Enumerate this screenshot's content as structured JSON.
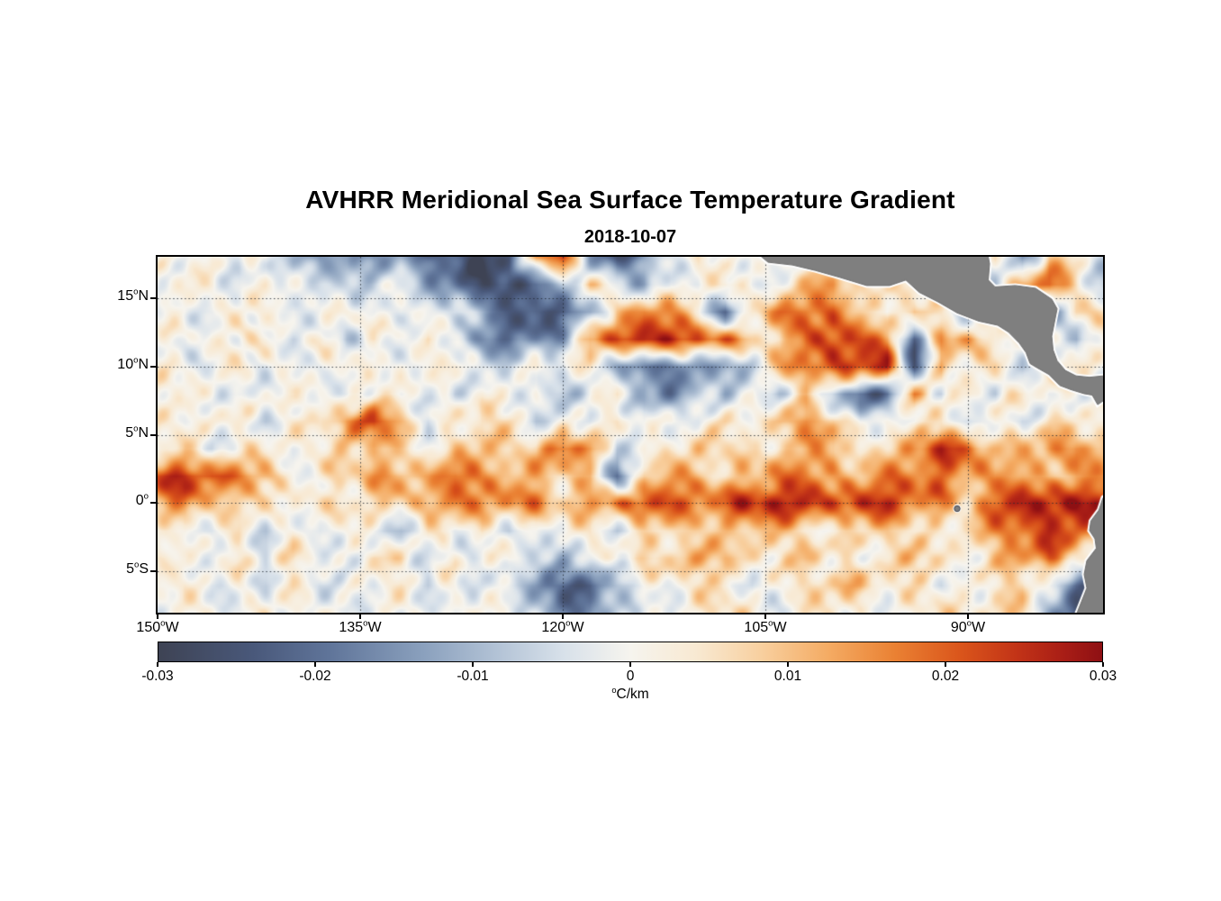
{
  "figure": {
    "title": "AVHRR Meridional Sea Surface Temperature Gradient",
    "subtitle": "2018-10-07"
  },
  "chart_data": {
    "type": "heatmap",
    "title": "AVHRR Meridional Sea Surface Temperature Gradient",
    "date": "2018-10-07",
    "units": "degC/km",
    "field_value_scale": 0.01,
    "lon_range_deg_west": [
      150,
      80
    ],
    "lat_range_deg_north": [
      18,
      -8
    ],
    "deg_sup": "o",
    "x_axis": {
      "ticks": [
        {
          "value": 150,
          "label": "150",
          "suffix": "W"
        },
        {
          "value": 135,
          "label": "135",
          "suffix": "W"
        },
        {
          "value": 120,
          "label": "120",
          "suffix": "W"
        },
        {
          "value": 105,
          "label": "105",
          "suffix": "W"
        },
        {
          "value": 90,
          "label": "90",
          "suffix": "W"
        }
      ]
    },
    "y_axis": {
      "ticks": [
        {
          "value": 15,
          "label": "15",
          "suffix": "N"
        },
        {
          "value": 10,
          "label": "10",
          "suffix": "N"
        },
        {
          "value": 5,
          "label": "5",
          "suffix": "N"
        },
        {
          "value": 0,
          "label": "0",
          "suffix": ""
        },
        {
          "value": -5,
          "label": "5",
          "suffix": "S"
        }
      ]
    },
    "colorbar": {
      "min": -0.03,
      "max": 0.03,
      "ticks": [
        "-0.03",
        "-0.02",
        "-0.01",
        "0",
        "0.01",
        "0.02",
        "0.03"
      ],
      "unit_sup": "o",
      "unit_text": "C/km",
      "stops": [
        [
          0.0,
          "#3e4354"
        ],
        [
          0.1,
          "#49587a"
        ],
        [
          0.18,
          "#5f7499"
        ],
        [
          0.28,
          "#8aa0bd"
        ],
        [
          0.36,
          "#b3c3d6"
        ],
        [
          0.43,
          "#d8e1ea"
        ],
        [
          0.5,
          "#f6f4ee"
        ],
        [
          0.57,
          "#f8e9d2"
        ],
        [
          0.64,
          "#f8cf9e"
        ],
        [
          0.71,
          "#f4ab63"
        ],
        [
          0.78,
          "#ea8133"
        ],
        [
          0.85,
          "#da551b"
        ],
        [
          0.91,
          "#c23317"
        ],
        [
          0.96,
          "#a81d16"
        ],
        [
          1.0,
          "#8e1013"
        ]
      ]
    },
    "grid": {
      "lon_start": 150,
      "lon_step": 2,
      "lat_start": 18,
      "lat_step": 2,
      "cols": 36,
      "rows": 14
    },
    "field": [
      [
        0,
        -0.3,
        0.2,
        -0.5,
        0.3,
        -1.0,
        -1.5,
        -0.8,
        -1.8,
        -1.2,
        -2.2,
        -2.6,
        -2.8,
        -2.5,
        1.5,
        2.8,
        -1.5,
        -2.5,
        -1.5,
        -0.5,
        0.5,
        -0.5,
        0.3,
        0,
        0,
        0,
        0,
        0,
        0,
        0,
        -0.5,
        0.5,
        -1.5,
        1.0,
        0.3,
        -0.5
      ],
      [
        0.3,
        -0.2,
        0.4,
        -0.3,
        0.2,
        -0.5,
        -0.3,
        -0.5,
        -0.3,
        -0.5,
        -1.0,
        -1.8,
        -2.8,
        -2.9,
        -2.2,
        -0.5,
        0.8,
        -0.5,
        -1.0,
        0.3,
        -0.3,
        0.5,
        -0.3,
        0.3,
        0.8,
        1.5,
        0.5,
        1.2,
        0,
        0,
        0.5,
        -0.5,
        1.0,
        2.0,
        0.8,
        -0.8
      ],
      [
        0,
        0.3,
        -0.3,
        0.2,
        -0.2,
        0.3,
        -0.4,
        0.2,
        -0.3,
        0.4,
        -0.3,
        -0.5,
        -1.2,
        -2.0,
        -2.7,
        -2.5,
        -1.2,
        1.2,
        1.8,
        1.2,
        0.5,
        -2.0,
        0.5,
        1.5,
        2.0,
        2.2,
        1.0,
        -0.5,
        1.5,
        0.5,
        -1.0,
        0,
        1.0,
        -1.5,
        0.5,
        0.3
      ],
      [
        0.2,
        -0.3,
        0.3,
        -0.2,
        0.4,
        -0.3,
        0.3,
        -0.5,
        0.3,
        -0.3,
        0.5,
        -0.8,
        -1.5,
        -2.0,
        -1.8,
        -1.2,
        1.5,
        2.5,
        2.6,
        2.4,
        2.2,
        1.8,
        0.8,
        0.5,
        2.2,
        2.5,
        2.3,
        1.5,
        -2.0,
        1.0,
        1.5,
        0,
        0.5,
        0.5,
        -1.2,
        0.5
      ],
      [
        0,
        0.3,
        -0.3,
        0.3,
        -0.2,
        0.4,
        -0.3,
        0.3,
        -0.4,
        0.5,
        -0.3,
        0.3,
        -0.5,
        -0.3,
        0.5,
        -0.5,
        0.5,
        -1.0,
        -2.2,
        -2.0,
        -1.5,
        -1.2,
        -0.5,
        1.0,
        2.0,
        2.4,
        2.2,
        2.5,
        -2.5,
        1.5,
        0,
        0.5,
        -0.5,
        0.8,
        0.5,
        -0.3
      ],
      [
        0.2,
        -0.2,
        0.3,
        -0.3,
        0.2,
        -0.3,
        0.4,
        -0.2,
        0.3,
        -0.3,
        0.2,
        -0.4,
        0.3,
        -0.5,
        0.3,
        -0.8,
        -0.5,
        0.3,
        -1.2,
        -1.5,
        -0.8,
        -1.0,
        0.3,
        -0.5,
        0.5,
        -0.8,
        -2.2,
        -1.8,
        1.2,
        -0.5,
        0.8,
        -0.3,
        0.5,
        -0.5,
        0.3,
        0
      ],
      [
        0.3,
        -0.2,
        0.3,
        0.2,
        -0.3,
        0.3,
        0.5,
        1.8,
        2.3,
        1.0,
        -0.5,
        0.3,
        0.8,
        0.5,
        -0.5,
        0.3,
        -0.3,
        0.5,
        -0.5,
        0.3,
        -0.3,
        0.5,
        0.3,
        1.2,
        1.5,
        1.0,
        -0.5,
        0.3,
        -0.3,
        0.5,
        -0.5,
        0.3,
        -0.3,
        0.5,
        0.3,
        0.5
      ],
      [
        0.3,
        0.5,
        -0.3,
        0.4,
        0.3,
        -0.3,
        0.4,
        1.0,
        1.2,
        0.5,
        0.3,
        0.8,
        1.0,
        0.5,
        0.8,
        2.5,
        1.5,
        -0.8,
        0.5,
        0.3,
        0.8,
        0.5,
        0.3,
        0.8,
        1.0,
        1.5,
        0.5,
        0.8,
        1.5,
        2.3,
        2.0,
        1.0,
        0.8,
        1.5,
        1.8,
        1.2
      ],
      [
        2.2,
        2.6,
        2.4,
        1.5,
        0.8,
        0.3,
        0.3,
        0.5,
        1.2,
        1.5,
        1.3,
        1.8,
        1.2,
        1.5,
        1.2,
        0.5,
        0.8,
        -1.5,
        0.8,
        1.2,
        1.0,
        0.8,
        1.2,
        1.5,
        1.8,
        1.5,
        1.2,
        1.5,
        1.8,
        2.0,
        1.5,
        1.0,
        1.5,
        1.2,
        1.5,
        1.0
      ],
      [
        1.5,
        1.8,
        1.0,
        0.5,
        0.3,
        0.5,
        0.3,
        0.5,
        0.8,
        1.0,
        1.2,
        1.5,
        1.5,
        1.8,
        1.5,
        0.8,
        1.5,
        2.0,
        2.4,
        2.0,
        1.8,
        2.2,
        2.5,
        2.6,
        2.7,
        2.5,
        2.6,
        2.4,
        2.0,
        1.5,
        0.5,
        2.0,
        2.8,
        3.0,
        2.9,
        2.5
      ],
      [
        -0.3,
        0.3,
        -0.3,
        0.3,
        -0.5,
        0.3,
        -0.3,
        0.3,
        -0.5,
        -0.8,
        0.3,
        -0.3,
        0.5,
        -0.5,
        0.3,
        -0.3,
        0.5,
        -0.5,
        0.3,
        0.5,
        0.8,
        1.0,
        1.2,
        1.0,
        0.5,
        0.3,
        0.5,
        0.8,
        0.3,
        0.5,
        0.8,
        1.5,
        2.2,
        2.5,
        2.0,
        1.0
      ],
      [
        0.3,
        -0.3,
        0.4,
        0.3,
        -0.3,
        0.5,
        0.3,
        -0.3,
        0.3,
        0.5,
        -0.3,
        0.3,
        -0.5,
        0.3,
        -0.3,
        -0.8,
        -0.5,
        0.3,
        0.8,
        1.0,
        0.8,
        1.2,
        0.8,
        0.5,
        0.8,
        0.5,
        0.3,
        0.5,
        0.8,
        0.5,
        0.3,
        0.8,
        1.2,
        1.8,
        1.0,
        -0.5
      ],
      [
        -0.2,
        0.3,
        -0.3,
        0.2,
        -0.3,
        0.3,
        -0.3,
        0.2,
        -0.3,
        0.3,
        -0.5,
        0.3,
        -0.3,
        -0.5,
        -1.0,
        -2.2,
        -2.4,
        -1.0,
        -0.3,
        0.3,
        0.5,
        0.3,
        -0.3,
        0.5,
        0.3,
        0.8,
        1.0,
        0.5,
        0.3,
        -0.3,
        0.3,
        0.5,
        0.8,
        -0.5,
        -2.0,
        -2.5
      ],
      [
        0.2,
        -0.2,
        0.3,
        -0.3,
        0.2,
        -0.3,
        0.3,
        -0.2,
        0.2,
        -0.3,
        0.3,
        -0.3,
        0.2,
        -0.3,
        -0.8,
        -1.5,
        -1.8,
        -0.8,
        0.3,
        -0.3,
        0.3,
        0.5,
        0.3,
        -0.3,
        0.3,
        0.5,
        0.3,
        -0.3,
        0.3,
        0.5,
        0.3,
        0.8,
        0.5,
        -1.0,
        -2.5,
        -2.8
      ]
    ],
    "land": {
      "color": "#7f7f7f",
      "coast_halo": "#ffffff",
      "edge": "#6e6e6e",
      "polygons": [
        [
          [
            106.5,
            19.0
          ],
          [
            104.8,
            17.6
          ],
          [
            103.0,
            17.4
          ],
          [
            101.3,
            17.0
          ],
          [
            99.5,
            16.5
          ],
          [
            97.5,
            15.9
          ],
          [
            95.8,
            15.9
          ],
          [
            94.6,
            16.3
          ],
          [
            93.6,
            15.4
          ],
          [
            92.2,
            14.7
          ],
          [
            90.8,
            13.9
          ],
          [
            89.2,
            13.3
          ],
          [
            87.8,
            13.0
          ],
          [
            87.0,
            12.5
          ],
          [
            86.2,
            11.7
          ],
          [
            85.7,
            11.0
          ],
          [
            85.4,
            10.2
          ],
          [
            84.9,
            9.9
          ],
          [
            84.0,
            9.4
          ],
          [
            83.2,
            8.6
          ],
          [
            82.4,
            8.3
          ],
          [
            81.4,
            8.0
          ],
          [
            80.8,
            7.9
          ],
          [
            80.4,
            7.2
          ],
          [
            79.8,
            7.6
          ],
          [
            79.2,
            8.3
          ],
          [
            78.4,
            8.6
          ],
          [
            77.8,
            8.8
          ],
          [
            77.8,
            9.7
          ],
          [
            79.0,
            9.5
          ],
          [
            80.0,
            9.3
          ],
          [
            81.0,
            9.2
          ],
          [
            82.0,
            9.3
          ],
          [
            82.8,
            9.7
          ],
          [
            83.4,
            10.4
          ],
          [
            83.7,
            11.2
          ],
          [
            83.8,
            12.2
          ],
          [
            83.6,
            13.2
          ],
          [
            83.4,
            14.2
          ],
          [
            83.8,
            14.9
          ],
          [
            85.0,
            15.7
          ],
          [
            86.5,
            15.9
          ],
          [
            88.0,
            15.8
          ],
          [
            88.5,
            16.3
          ],
          [
            88.4,
            17.5
          ],
          [
            88.7,
            19.0
          ]
        ],
        [
          [
            80.0,
            0.4
          ],
          [
            80.3,
            -0.5
          ],
          [
            80.9,
            -1.3
          ],
          [
            81.0,
            -2.0
          ],
          [
            80.6,
            -2.6
          ],
          [
            80.5,
            -3.3
          ],
          [
            81.2,
            -4.2
          ],
          [
            81.4,
            -5.2
          ],
          [
            81.2,
            -6.2
          ],
          [
            81.6,
            -7.2
          ],
          [
            82.0,
            -8.2
          ],
          [
            82.3,
            -9.0
          ],
          [
            74.0,
            -9.0
          ],
          [
            74.0,
            1.5
          ],
          [
            78.5,
            1.0
          ],
          [
            79.4,
            0.8
          ]
        ]
      ],
      "galapagos": {
        "lon_w": 90.8,
        "lat": -0.4
      }
    },
    "style": {
      "background": "#ffffff",
      "frame": "#000000",
      "grid_dot": "#2a3138"
    }
  }
}
